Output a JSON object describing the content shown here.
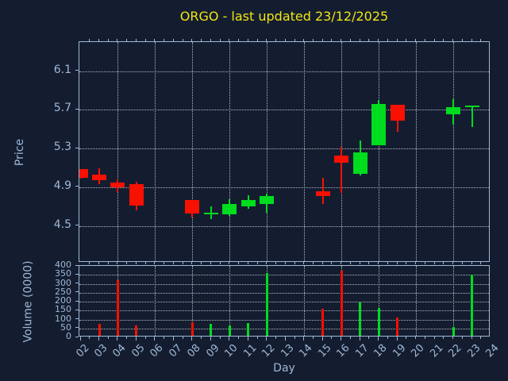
{
  "title": "ORGO - last updated 23/12/2025",
  "colors": {
    "background": "#141D30",
    "axis": "#9DB8D6",
    "grid": "#CDD4DC",
    "title_text": "#F0E613",
    "up": "#00DC1E",
    "down": "#F81000"
  },
  "chart_data": {
    "type": "candlestick_with_volume",
    "title": "ORGO - last updated 23/12/2025",
    "xlabel": "Day",
    "price_ylabel": "Price",
    "volume_ylabel": "Volume (0000)",
    "grid": "dotted; horizontal at price/volume ticks, vertical at even days",
    "legend": "none",
    "xlim": [
      1.935,
      24
    ],
    "price_ylim": [
      4.12,
      6.4
    ],
    "volume_ylim": [
      0,
      400
    ],
    "price_ticks": [
      6.1,
      5.7,
      5.3,
      4.9,
      4.5
    ],
    "price_tick_labels": [
      "6.1",
      "5.7",
      "5.3",
      "4.9",
      "4.5"
    ],
    "volume_ticks": [
      400,
      350,
      300,
      250,
      200,
      150,
      100,
      50,
      0
    ],
    "volume_tick_labels": [
      "400",
      "350",
      "300",
      "250",
      "200",
      "150",
      "100",
      "50",
      "0"
    ],
    "x_ticks": [
      2,
      3,
      4,
      5,
      6,
      7,
      8,
      9,
      10,
      11,
      12,
      13,
      14,
      15,
      16,
      17,
      18,
      19,
      20,
      21,
      22,
      23,
      24
    ],
    "x_tick_labels": [
      "02",
      "03",
      "04",
      "05",
      "06",
      "07",
      "08",
      "09",
      "10",
      "11",
      "12",
      "13",
      "14",
      "15",
      "16",
      "17",
      "18",
      "19",
      "20",
      "21",
      "22",
      "23",
      "24"
    ],
    "vgrid_days": [
      4,
      6,
      8,
      10,
      12,
      14,
      16,
      18,
      20,
      22
    ],
    "series": [
      {
        "day": 2,
        "open": 5.09,
        "high": 5.09,
        "low": 4.99,
        "close": 5.0,
        "volume": 0,
        "direction": "down"
      },
      {
        "day": 3,
        "open": 5.03,
        "high": 5.1,
        "low": 4.93,
        "close": 4.97,
        "volume": 75,
        "direction": "down"
      },
      {
        "day": 4,
        "open": 4.95,
        "high": 4.98,
        "low": 4.85,
        "close": 4.9,
        "volume": 320,
        "direction": "down"
      },
      {
        "day": 5,
        "open": 4.93,
        "high": 4.96,
        "low": 4.66,
        "close": 4.71,
        "volume": 65,
        "direction": "down"
      },
      {
        "day": 8,
        "open": 4.77,
        "high": 4.77,
        "low": 4.59,
        "close": 4.63,
        "volume": 85,
        "direction": "down"
      },
      {
        "day": 9,
        "open": 4.63,
        "high": 4.7,
        "low": 4.57,
        "close": 4.64,
        "volume": 75,
        "direction": "up"
      },
      {
        "day": 10,
        "open": 4.62,
        "high": 4.78,
        "low": 4.6,
        "close": 4.73,
        "volume": 67,
        "direction": "up"
      },
      {
        "day": 11,
        "open": 4.7,
        "high": 4.82,
        "low": 4.68,
        "close": 4.77,
        "volume": 82,
        "direction": "up"
      },
      {
        "day": 12,
        "open": 4.73,
        "high": 4.83,
        "low": 4.64,
        "close": 4.81,
        "volume": 360,
        "direction": "up"
      },
      {
        "day": 15,
        "open": 4.86,
        "high": 5.0,
        "low": 4.73,
        "close": 4.81,
        "volume": 160,
        "direction": "down"
      },
      {
        "day": 16,
        "open": 5.23,
        "high": 5.32,
        "low": 4.84,
        "close": 5.15,
        "volume": 372,
        "direction": "down"
      },
      {
        "day": 17,
        "open": 5.04,
        "high": 5.38,
        "low": 5.02,
        "close": 5.26,
        "volume": 197,
        "direction": "up"
      },
      {
        "day": 18,
        "open": 5.33,
        "high": 5.8,
        "low": 5.33,
        "close": 5.76,
        "volume": 166,
        "direction": "up"
      },
      {
        "day": 19,
        "open": 5.75,
        "high": 5.75,
        "low": 5.47,
        "close": 5.59,
        "volume": 110,
        "direction": "down"
      },
      {
        "day": 22,
        "open": 5.65,
        "high": 5.81,
        "low": 5.55,
        "close": 5.73,
        "volume": 60,
        "direction": "up"
      },
      {
        "day": 23,
        "open": 5.74,
        "high": 5.74,
        "low": 5.52,
        "close": 5.74,
        "volume": 350,
        "direction": "up"
      }
    ]
  }
}
